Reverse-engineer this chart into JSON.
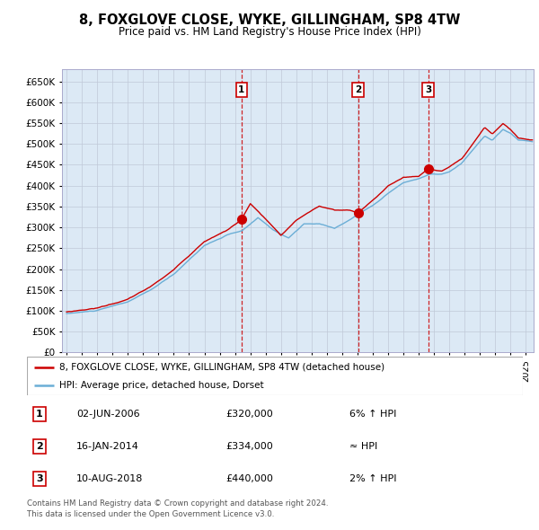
{
  "title": "8, FOXGLOVE CLOSE, WYKE, GILLINGHAM, SP8 4TW",
  "subtitle": "Price paid vs. HM Land Registry's House Price Index (HPI)",
  "legend_line1": "8, FOXGLOVE CLOSE, WYKE, GILLINGHAM, SP8 4TW (detached house)",
  "legend_line2": "HPI: Average price, detached house, Dorset",
  "footer1": "Contains HM Land Registry data © Crown copyright and database right 2024.",
  "footer2": "This data is licensed under the Open Government Licence v3.0.",
  "transactions": [
    {
      "num": 1,
      "date": "02-JUN-2006",
      "price": 320000,
      "note": "6% ↑ HPI",
      "date_val": 2006.42
    },
    {
      "num": 2,
      "date": "16-JAN-2014",
      "price": 334000,
      "note": "≈ HPI",
      "date_val": 2014.04
    },
    {
      "num": 3,
      "date": "10-AUG-2018",
      "price": 440000,
      "note": "2% ↑ HPI",
      "date_val": 2018.61
    }
  ],
  "hpi_color": "#6baed6",
  "price_color": "#cc0000",
  "dot_color": "#cc0000",
  "vline_color": "#cc0000",
  "bg_color": "#dce9f5",
  "grid_color": "#c0c8d8",
  "box_color": "#cc0000",
  "ylim": [
    0,
    680000
  ],
  "yticks": [
    0,
    50000,
    100000,
    150000,
    200000,
    250000,
    300000,
    350000,
    400000,
    450000,
    500000,
    550000,
    600000,
    650000
  ],
  "xlim_start": 1994.7,
  "xlim_end": 2025.5
}
